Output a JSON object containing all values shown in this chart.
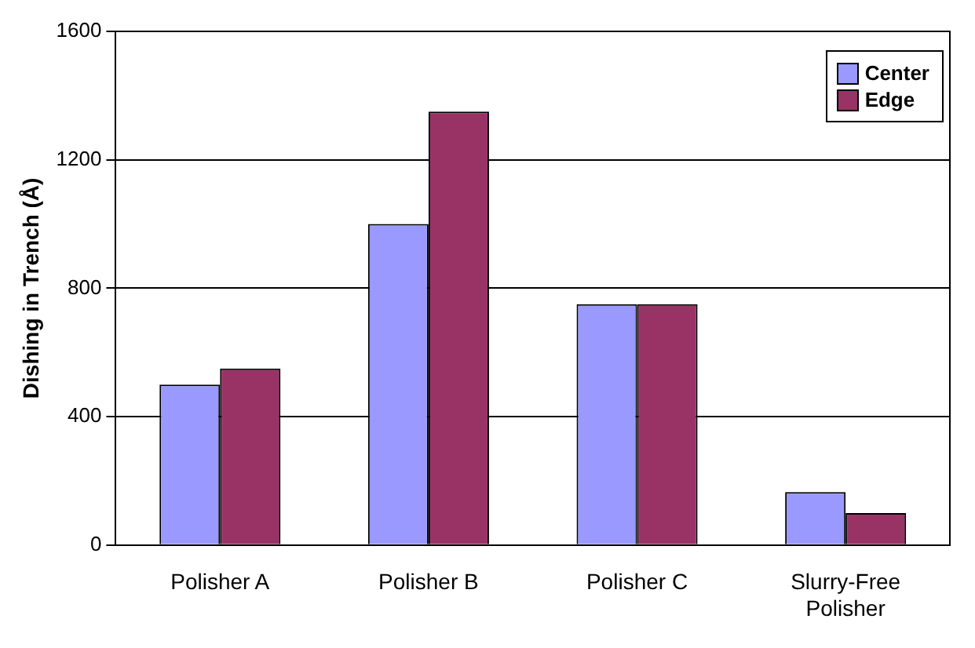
{
  "chart_data": {
    "type": "bar",
    "ylabel": "Dishing in Trench (Å)",
    "categories": [
      "Polisher A",
      "Polisher B",
      "Polisher C",
      "Slurry-Free Polisher"
    ],
    "series": [
      {
        "name": "Center",
        "color": "#9999ff",
        "values": [
          500,
          1000,
          750,
          165
        ]
      },
      {
        "name": "Edge",
        "color": "#993366",
        "values": [
          550,
          1350,
          750,
          100
        ]
      }
    ],
    "ylim": [
      0,
      1600
    ],
    "yticks": [
      0,
      400,
      800,
      1200,
      1600
    ],
    "grid": "y",
    "legend": "top right"
  }
}
